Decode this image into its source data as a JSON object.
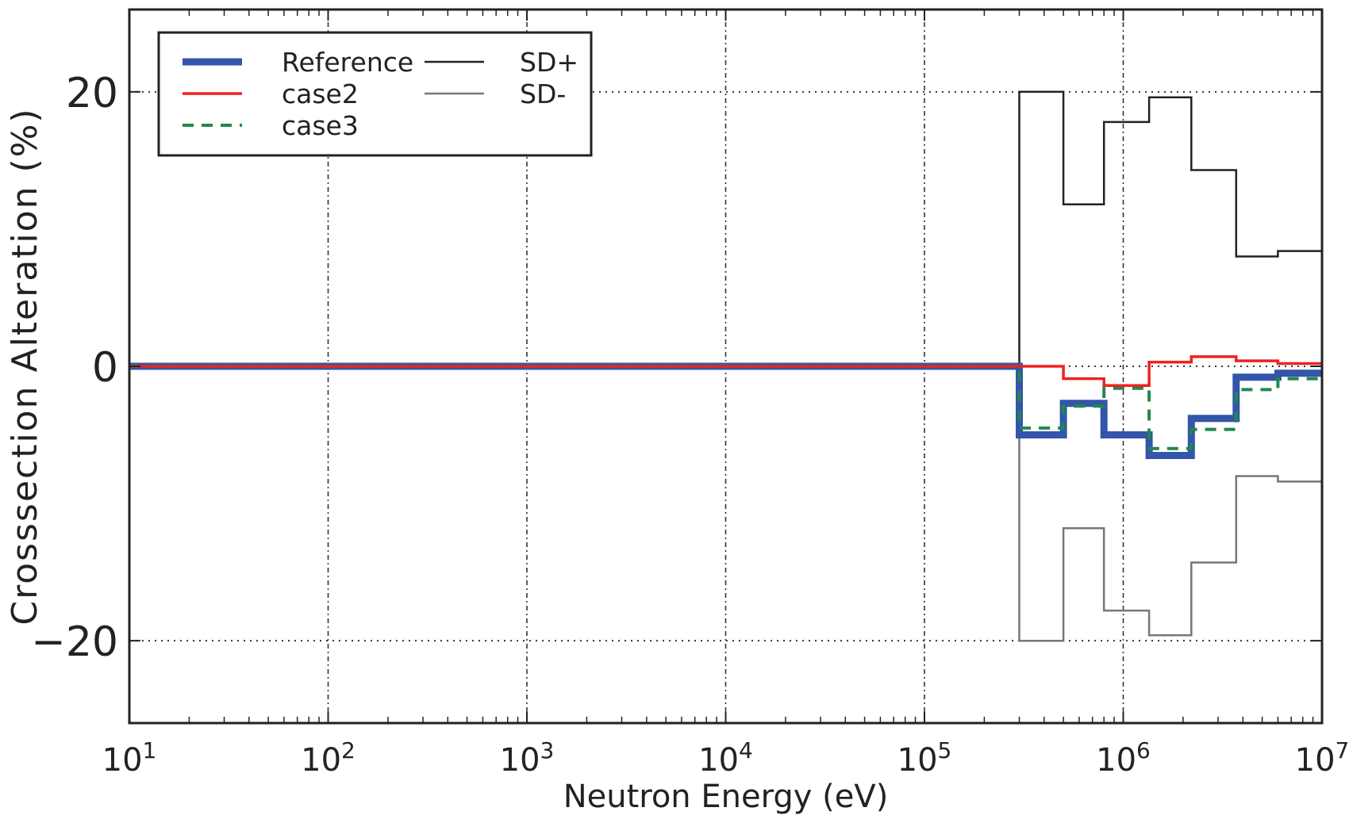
{
  "chart_data": {
    "type": "line",
    "title": "",
    "xlabel": "Neutron Energy (eV)",
    "ylabel": "Crosssection Alteration (%)",
    "xscale": "log",
    "xlim": [
      10,
      10000000
    ],
    "ylim": [
      -26,
      26
    ],
    "x_ticks": [
      {
        "value": 10,
        "base": "10",
        "exp": "1"
      },
      {
        "value": 100,
        "base": "10",
        "exp": "2"
      },
      {
        "value": 1000,
        "base": "10",
        "exp": "3"
      },
      {
        "value": 10000,
        "base": "10",
        "exp": "4"
      },
      {
        "value": 100000,
        "base": "10",
        "exp": "5"
      },
      {
        "value": 1000000,
        "base": "10",
        "exp": "6"
      },
      {
        "value": 10000000,
        "base": "10",
        "exp": "7"
      }
    ],
    "y_ticks": [
      {
        "value": 20,
        "label": "20"
      },
      {
        "value": 0,
        "label": "0"
      },
      {
        "value": -20,
        "label": "−20"
      }
    ],
    "grid": "dotted",
    "legend_position": "top-left",
    "series": [
      {
        "name": "Reference",
        "color": "#3355aa",
        "style": "solid-thick",
        "x": [
          10,
          300000,
          300000,
          500000,
          500000,
          800000,
          800000,
          1350000,
          1350000,
          2200000,
          2200000,
          3700000,
          3700000,
          6000000,
          6000000,
          10000000
        ],
        "y": [
          0,
          0,
          -5,
          -5,
          -2.7,
          -2.7,
          -5,
          -5,
          -6.5,
          -6.5,
          -3.8,
          -3.8,
          -0.8,
          -0.8,
          -0.5,
          -0.5
        ]
      },
      {
        "name": "case2",
        "color": "#ee2222",
        "style": "solid",
        "x": [
          10,
          300000,
          300000,
          500000,
          500000,
          800000,
          800000,
          1350000,
          1350000,
          2200000,
          2200000,
          3700000,
          3700000,
          6000000,
          6000000,
          10000000
        ],
        "y": [
          0,
          0,
          0,
          0,
          -0.9,
          -0.9,
          -1.4,
          -1.4,
          0.3,
          0.3,
          0.7,
          0.7,
          0.4,
          0.4,
          0.2,
          0.2
        ]
      },
      {
        "name": "case3",
        "color": "#22884a",
        "style": "dashed",
        "x": [
          10,
          300000,
          300000,
          500000,
          500000,
          800000,
          800000,
          1350000,
          1350000,
          2200000,
          2200000,
          3700000,
          3700000,
          6000000,
          6000000,
          10000000
        ],
        "y": [
          0,
          0,
          -4.5,
          -4.5,
          -2.9,
          -2.9,
          -1.6,
          -1.6,
          -6.0,
          -6.0,
          -4.6,
          -4.6,
          -1.7,
          -1.7,
          -0.9,
          -0.9
        ]
      },
      {
        "name": "SD+",
        "color": "#222222",
        "style": "solid-thin",
        "x": [
          300000,
          300000,
          500000,
          500000,
          800000,
          800000,
          1350000,
          1350000,
          2200000,
          2200000,
          3700000,
          3700000,
          6000000,
          6000000,
          10000000
        ],
        "y": [
          0,
          20,
          20,
          11.8,
          11.8,
          17.8,
          17.8,
          19.6,
          19.6,
          14.3,
          14.3,
          8,
          8,
          8.4,
          8.4
        ]
      },
      {
        "name": "SD-",
        "color": "#777777",
        "style": "solid-thin",
        "x": [
          300000,
          300000,
          500000,
          500000,
          800000,
          800000,
          1350000,
          1350000,
          2200000,
          2200000,
          3700000,
          3700000,
          6000000,
          6000000,
          10000000
        ],
        "y": [
          0,
          -20,
          -20,
          -11.8,
          -11.8,
          -17.8,
          -17.8,
          -19.6,
          -19.6,
          -14.3,
          -14.3,
          -8,
          -8,
          -8.4,
          -8.4
        ]
      }
    ]
  }
}
